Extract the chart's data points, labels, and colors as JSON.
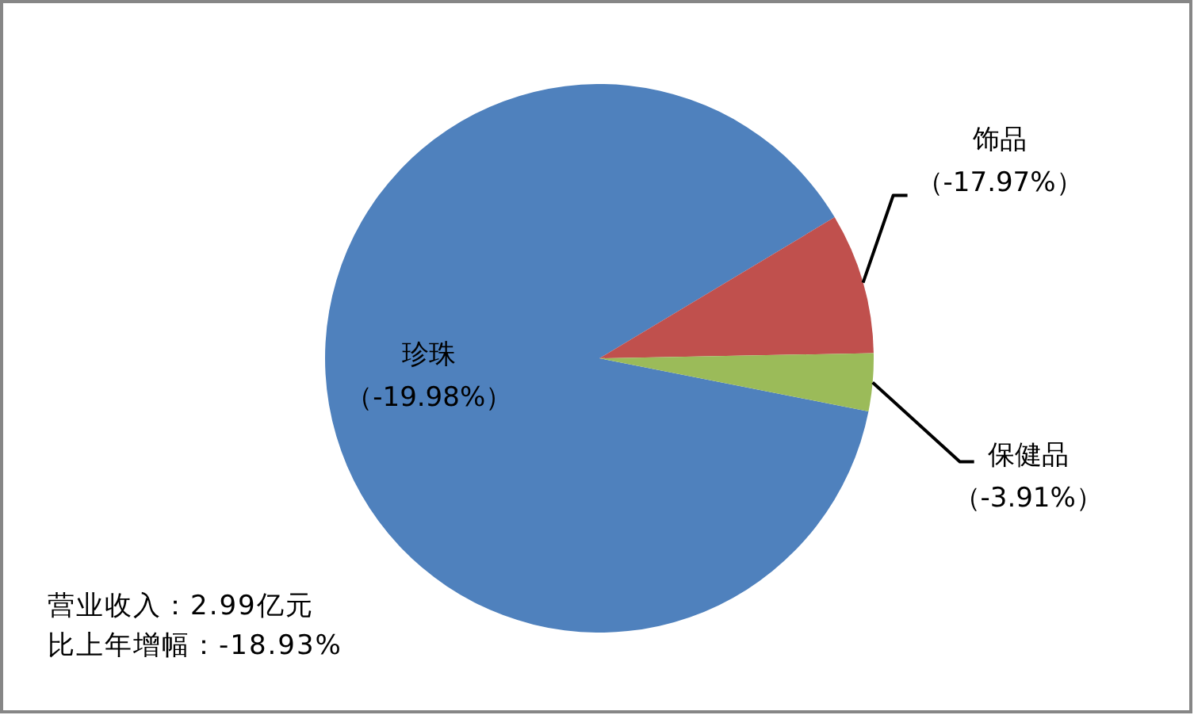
{
  "chart_data": {
    "type": "pie",
    "categories": [
      "珍珠（-19.98%）",
      "饰品（-17.97%）",
      "保健品（-3.91%）"
    ],
    "values": [
      88.3,
      8.3,
      3.4
    ],
    "colors": [
      "#4f81bd",
      "#c0504d",
      "#9bbb59"
    ],
    "annotations": [
      "营业收入：2.99亿元",
      "比上年增幅：-18.93%"
    ]
  }
}
